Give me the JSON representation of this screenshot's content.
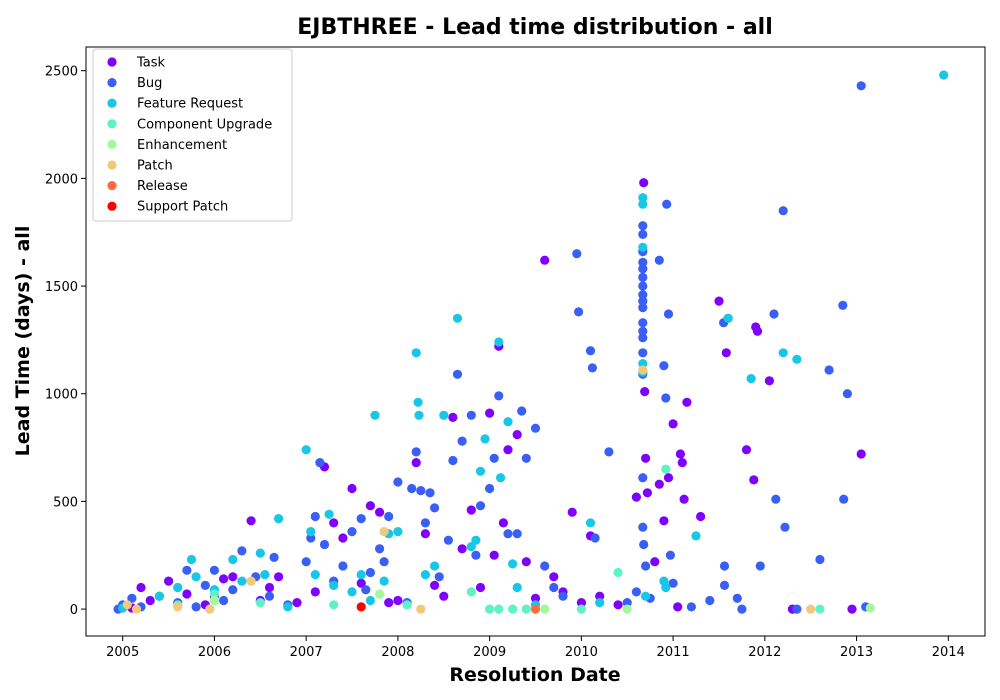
{
  "chart_data": {
    "type": "scatter",
    "title": "EJBTHREE - Lead time distribution - all",
    "xlabel": "Resolution Date",
    "ylabel": "Lead Time (days) - all",
    "xlim": [
      2004.6,
      2014.4
    ],
    "ylim": [
      -125,
      2610
    ],
    "x_ticks": [
      "2005",
      "2006",
      "2007",
      "2008",
      "2009",
      "2010",
      "2011",
      "2012",
      "2013",
      "2014"
    ],
    "y_ticks": [
      "0",
      "500",
      "1000",
      "1500",
      "2000",
      "2500"
    ],
    "grid": false,
    "legend_position": "top-left",
    "series": [
      {
        "name": "Task",
        "color": "#8000ff",
        "points": [
          [
            2005.1,
            5
          ],
          [
            2005.2,
            100
          ],
          [
            2005.3,
            40
          ],
          [
            2005.5,
            130
          ],
          [
            2005.7,
            70
          ],
          [
            2005.9,
            20
          ],
          [
            2006.0,
            60
          ],
          [
            2006.1,
            140
          ],
          [
            2006.2,
            150
          ],
          [
            2006.4,
            410
          ],
          [
            2006.5,
            40
          ],
          [
            2006.6,
            100
          ],
          [
            2006.7,
            150
          ],
          [
            2006.9,
            30
          ],
          [
            2007.1,
            80
          ],
          [
            2007.2,
            660
          ],
          [
            2007.3,
            400
          ],
          [
            2007.4,
            330
          ],
          [
            2007.5,
            560
          ],
          [
            2007.6,
            120
          ],
          [
            2007.7,
            480
          ],
          [
            2007.8,
            450
          ],
          [
            2007.9,
            30
          ],
          [
            2008.0,
            40
          ],
          [
            2008.2,
            680
          ],
          [
            2008.3,
            350
          ],
          [
            2008.4,
            110
          ],
          [
            2008.5,
            60
          ],
          [
            2008.6,
            890
          ],
          [
            2008.7,
            280
          ],
          [
            2008.8,
            460
          ],
          [
            2008.9,
            100
          ],
          [
            2009.0,
            910
          ],
          [
            2009.05,
            250
          ],
          [
            2009.1,
            1220
          ],
          [
            2009.15,
            400
          ],
          [
            2009.2,
            740
          ],
          [
            2009.3,
            810
          ],
          [
            2009.4,
            220
          ],
          [
            2009.5,
            50
          ],
          [
            2009.6,
            1620
          ],
          [
            2009.7,
            150
          ],
          [
            2009.8,
            80
          ],
          [
            2009.9,
            450
          ],
          [
            2010.0,
            30
          ],
          [
            2010.1,
            340
          ],
          [
            2010.2,
            60
          ],
          [
            2010.4,
            20
          ],
          [
            2010.6,
            520
          ],
          [
            2010.68,
            1980
          ],
          [
            2010.69,
            1010
          ],
          [
            2010.7,
            700
          ],
          [
            2010.72,
            540
          ],
          [
            2010.8,
            220
          ],
          [
            2010.85,
            580
          ],
          [
            2010.9,
            410
          ],
          [
            2010.95,
            610
          ],
          [
            2011.0,
            860
          ],
          [
            2011.05,
            10
          ],
          [
            2011.08,
            720
          ],
          [
            2011.1,
            680
          ],
          [
            2011.12,
            510
          ],
          [
            2011.15,
            960
          ],
          [
            2011.3,
            430
          ],
          [
            2011.5,
            1430
          ],
          [
            2011.58,
            1190
          ],
          [
            2011.8,
            740
          ],
          [
            2011.88,
            600
          ],
          [
            2011.9,
            1310
          ],
          [
            2011.92,
            1290
          ],
          [
            2012.05,
            1060
          ],
          [
            2012.3,
            0
          ],
          [
            2012.95,
            0
          ],
          [
            2013.05,
            720
          ]
        ]
      },
      {
        "name": "Bug",
        "color": "#3a5ff5",
        "points": [
          [
            2004.95,
            0
          ],
          [
            2005.0,
            20
          ],
          [
            2005.1,
            50
          ],
          [
            2005.2,
            10
          ],
          [
            2005.4,
            60
          ],
          [
            2005.6,
            30
          ],
          [
            2005.7,
            180
          ],
          [
            2005.8,
            10
          ],
          [
            2005.9,
            110
          ],
          [
            2006.0,
            180
          ],
          [
            2006.1,
            40
          ],
          [
            2006.2,
            90
          ],
          [
            2006.3,
            270
          ],
          [
            2006.45,
            150
          ],
          [
            2006.6,
            60
          ],
          [
            2006.65,
            240
          ],
          [
            2006.8,
            20
          ],
          [
            2007.0,
            220
          ],
          [
            2007.05,
            330
          ],
          [
            2007.1,
            430
          ],
          [
            2007.15,
            680
          ],
          [
            2007.2,
            300
          ],
          [
            2007.3,
            130
          ],
          [
            2007.4,
            200
          ],
          [
            2007.5,
            360
          ],
          [
            2007.6,
            420
          ],
          [
            2007.65,
            90
          ],
          [
            2007.7,
            170
          ],
          [
            2007.8,
            280
          ],
          [
            2007.85,
            220
          ],
          [
            2007.9,
            430
          ],
          [
            2008.0,
            590
          ],
          [
            2008.1,
            30
          ],
          [
            2008.15,
            560
          ],
          [
            2008.2,
            730
          ],
          [
            2008.25,
            550
          ],
          [
            2008.3,
            400
          ],
          [
            2008.35,
            540
          ],
          [
            2008.4,
            470
          ],
          [
            2008.45,
            150
          ],
          [
            2008.55,
            320
          ],
          [
            2008.6,
            690
          ],
          [
            2008.65,
            1090
          ],
          [
            2008.7,
            780
          ],
          [
            2008.8,
            900
          ],
          [
            2008.85,
            250
          ],
          [
            2008.9,
            480
          ],
          [
            2009.0,
            560
          ],
          [
            2009.05,
            700
          ],
          [
            2009.1,
            990
          ],
          [
            2009.2,
            350
          ],
          [
            2009.3,
            350
          ],
          [
            2009.35,
            920
          ],
          [
            2009.4,
            700
          ],
          [
            2009.5,
            840
          ],
          [
            2009.6,
            200
          ],
          [
            2009.7,
            100
          ],
          [
            2009.8,
            60
          ],
          [
            2009.95,
            1650
          ],
          [
            2009.97,
            1380
          ],
          [
            2010.1,
            1200
          ],
          [
            2010.12,
            1120
          ],
          [
            2010.15,
            330
          ],
          [
            2010.3,
            730
          ],
          [
            2010.5,
            30
          ],
          [
            2010.6,
            80
          ],
          [
            2010.67,
            1780
          ],
          [
            2010.67,
            1740
          ],
          [
            2010.67,
            1660
          ],
          [
            2010.67,
            1610
          ],
          [
            2010.67,
            1580
          ],
          [
            2010.67,
            1540
          ],
          [
            2010.67,
            1500
          ],
          [
            2010.67,
            1460
          ],
          [
            2010.67,
            1430
          ],
          [
            2010.67,
            1400
          ],
          [
            2010.67,
            1330
          ],
          [
            2010.67,
            1290
          ],
          [
            2010.67,
            1260
          ],
          [
            2010.67,
            1190
          ],
          [
            2010.67,
            1090
          ],
          [
            2010.67,
            610
          ],
          [
            2010.67,
            380
          ],
          [
            2010.68,
            300
          ],
          [
            2010.7,
            200
          ],
          [
            2010.75,
            50
          ],
          [
            2010.85,
            1620
          ],
          [
            2010.9,
            1130
          ],
          [
            2010.92,
            980
          ],
          [
            2010.93,
            1880
          ],
          [
            2010.95,
            1370
          ],
          [
            2010.97,
            250
          ],
          [
            2011.0,
            120
          ],
          [
            2011.2,
            10
          ],
          [
            2011.4,
            40
          ],
          [
            2011.55,
            1330
          ],
          [
            2011.56,
            200
          ],
          [
            2011.56,
            110
          ],
          [
            2011.6,
            1350
          ],
          [
            2011.7,
            50
          ],
          [
            2011.75,
            0
          ],
          [
            2011.95,
            200
          ],
          [
            2012.1,
            1370
          ],
          [
            2012.12,
            510
          ],
          [
            2012.2,
            1850
          ],
          [
            2012.22,
            380
          ],
          [
            2012.35,
            0
          ],
          [
            2012.6,
            230
          ],
          [
            2012.7,
            1110
          ],
          [
            2012.85,
            1410
          ],
          [
            2012.86,
            510
          ],
          [
            2012.9,
            1000
          ],
          [
            2013.05,
            2430
          ],
          [
            2013.1,
            10
          ]
        ]
      },
      {
        "name": "Feature Request",
        "color": "#18c6e6",
        "points": [
          [
            2005.0,
            5
          ],
          [
            2005.4,
            60
          ],
          [
            2005.6,
            100
          ],
          [
            2005.75,
            230
          ],
          [
            2005.8,
            150
          ],
          [
            2006.0,
            90
          ],
          [
            2006.2,
            230
          ],
          [
            2006.3,
            130
          ],
          [
            2006.5,
            260
          ],
          [
            2006.55,
            160
          ],
          [
            2006.7,
            420
          ],
          [
            2006.8,
            10
          ],
          [
            2007.0,
            740
          ],
          [
            2007.05,
            360
          ],
          [
            2007.1,
            160
          ],
          [
            2007.25,
            440
          ],
          [
            2007.3,
            110
          ],
          [
            2007.5,
            80
          ],
          [
            2007.6,
            160
          ],
          [
            2007.7,
            40
          ],
          [
            2007.75,
            900
          ],
          [
            2007.85,
            130
          ],
          [
            2007.9,
            350
          ],
          [
            2008.0,
            360
          ],
          [
            2008.2,
            1190
          ],
          [
            2008.22,
            960
          ],
          [
            2008.23,
            900
          ],
          [
            2008.3,
            160
          ],
          [
            2008.4,
            200
          ],
          [
            2008.5,
            900
          ],
          [
            2008.65,
            1350
          ],
          [
            2008.8,
            290
          ],
          [
            2008.85,
            320
          ],
          [
            2008.9,
            640
          ],
          [
            2008.95,
            790
          ],
          [
            2009.1,
            1240
          ],
          [
            2009.12,
            610
          ],
          [
            2009.2,
            870
          ],
          [
            2009.25,
            210
          ],
          [
            2009.3,
            100
          ],
          [
            2009.5,
            20
          ],
          [
            2010.1,
            400
          ],
          [
            2010.2,
            30
          ],
          [
            2010.67,
            1910
          ],
          [
            2010.67,
            1880
          ],
          [
            2010.67,
            1680
          ],
          [
            2010.67,
            1140
          ],
          [
            2010.67,
            1100
          ],
          [
            2010.7,
            60
          ],
          [
            2010.9,
            130
          ],
          [
            2010.92,
            100
          ],
          [
            2011.25,
            340
          ],
          [
            2011.6,
            1350
          ],
          [
            2011.85,
            1070
          ],
          [
            2012.2,
            1190
          ],
          [
            2012.35,
            1160
          ],
          [
            2013.95,
            2480
          ]
        ]
      },
      {
        "name": "Component  Upgrade",
        "color": "#5ef2c6",
        "points": [
          [
            2005.6,
            20
          ],
          [
            2006.0,
            70
          ],
          [
            2006.5,
            30
          ],
          [
            2007.3,
            20
          ],
          [
            2008.1,
            20
          ],
          [
            2008.8,
            80
          ],
          [
            2009.0,
            0
          ],
          [
            2009.1,
            0
          ],
          [
            2009.25,
            0
          ],
          [
            2009.4,
            0
          ],
          [
            2010.0,
            0
          ],
          [
            2010.4,
            170
          ],
          [
            2010.92,
            650
          ],
          [
            2012.6,
            0
          ]
        ]
      },
      {
        "name": "Enhancement",
        "color": "#a4f79b",
        "points": [
          [
            2006.0,
            40
          ],
          [
            2007.8,
            70
          ],
          [
            2009.6,
            0
          ],
          [
            2010.5,
            0
          ],
          [
            2013.15,
            5
          ]
        ]
      },
      {
        "name": "Patch",
        "color": "#f2c87a",
        "points": [
          [
            2005.05,
            20
          ],
          [
            2005.15,
            0
          ],
          [
            2005.6,
            10
          ],
          [
            2005.95,
            0
          ],
          [
            2006.4,
            130
          ],
          [
            2007.85,
            360
          ],
          [
            2008.25,
            0
          ],
          [
            2010.67,
            1110
          ],
          [
            2012.5,
            0
          ]
        ]
      },
      {
        "name": "Release",
        "color": "#ff6b3d",
        "points": [
          [
            2009.5,
            0
          ]
        ]
      },
      {
        "name": "Support Patch",
        "color": "#ff0000",
        "points": [
          [
            2007.6,
            10
          ]
        ]
      }
    ]
  }
}
